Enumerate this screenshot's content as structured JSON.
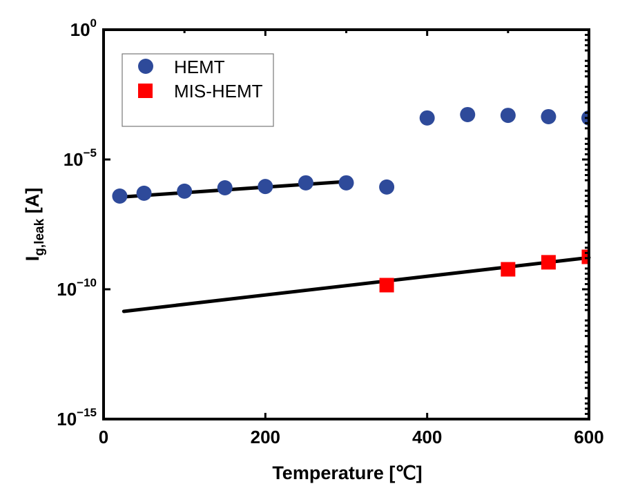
{
  "chart_data": {
    "type": "scatter",
    "title": "",
    "xlabel": "Temperature [℃]",
    "ylabel": {
      "main": "I",
      "subscript": "g,leak",
      "unit": " [A]"
    },
    "xlim": [
      0,
      600
    ],
    "ylim": [
      1e-15,
      1
    ],
    "yscale": "log",
    "x_ticks": [
      0,
      200,
      400,
      600
    ],
    "x_tick_labels": [
      "0",
      "200",
      "400",
      "600"
    ],
    "x_minor_ticks": [
      100,
      300,
      500
    ],
    "y_ticks": [
      {
        "exp": 0,
        "base": "10",
        "sup": "0"
      },
      {
        "exp": -5,
        "base": "10",
        "sup": "−5"
      },
      {
        "exp": -10,
        "base": "10",
        "sup": "−10"
      },
      {
        "exp": -15,
        "base": "10",
        "sup": "−15"
      }
    ],
    "y_minor_ticks_per_major": 4,
    "grid": false,
    "legend": {
      "position": "top-left",
      "entries": [
        {
          "name": "HEMT",
          "marker": "circle",
          "color": "#2e4a9a"
        },
        {
          "name": "MIS-HEMT",
          "marker": "square",
          "color": "#ff0000"
        }
      ]
    },
    "series": [
      {
        "name": "HEMT",
        "marker": "circle",
        "color": "#2e4a9a",
        "x": [
          20,
          50,
          100,
          150,
          200,
          250,
          300,
          350,
          400,
          450,
          500,
          550,
          600
        ],
        "log10_y": [
          -6.41,
          -6.3,
          -6.22,
          -6.09,
          -6.04,
          -5.9,
          -5.9,
          -6.06,
          -3.4,
          -3.27,
          -3.3,
          -3.35,
          -3.4
        ]
      },
      {
        "name": "MIS-HEMT",
        "marker": "square",
        "color": "#ff0000",
        "x": [
          350,
          500,
          550,
          600
        ],
        "log10_y": [
          -9.84,
          -9.23,
          -8.96,
          -8.75
        ]
      }
    ],
    "fit_lines": [
      {
        "name": "HEMT fit",
        "color": "#000000",
        "x": [
          25,
          300
        ],
        "log10_y": [
          -6.44,
          -5.85
        ]
      },
      {
        "name": "MIS-HEMT fit",
        "color": "#000000",
        "x": [
          25,
          600
        ],
        "log10_y": [
          -10.85,
          -8.78
        ]
      }
    ]
  }
}
